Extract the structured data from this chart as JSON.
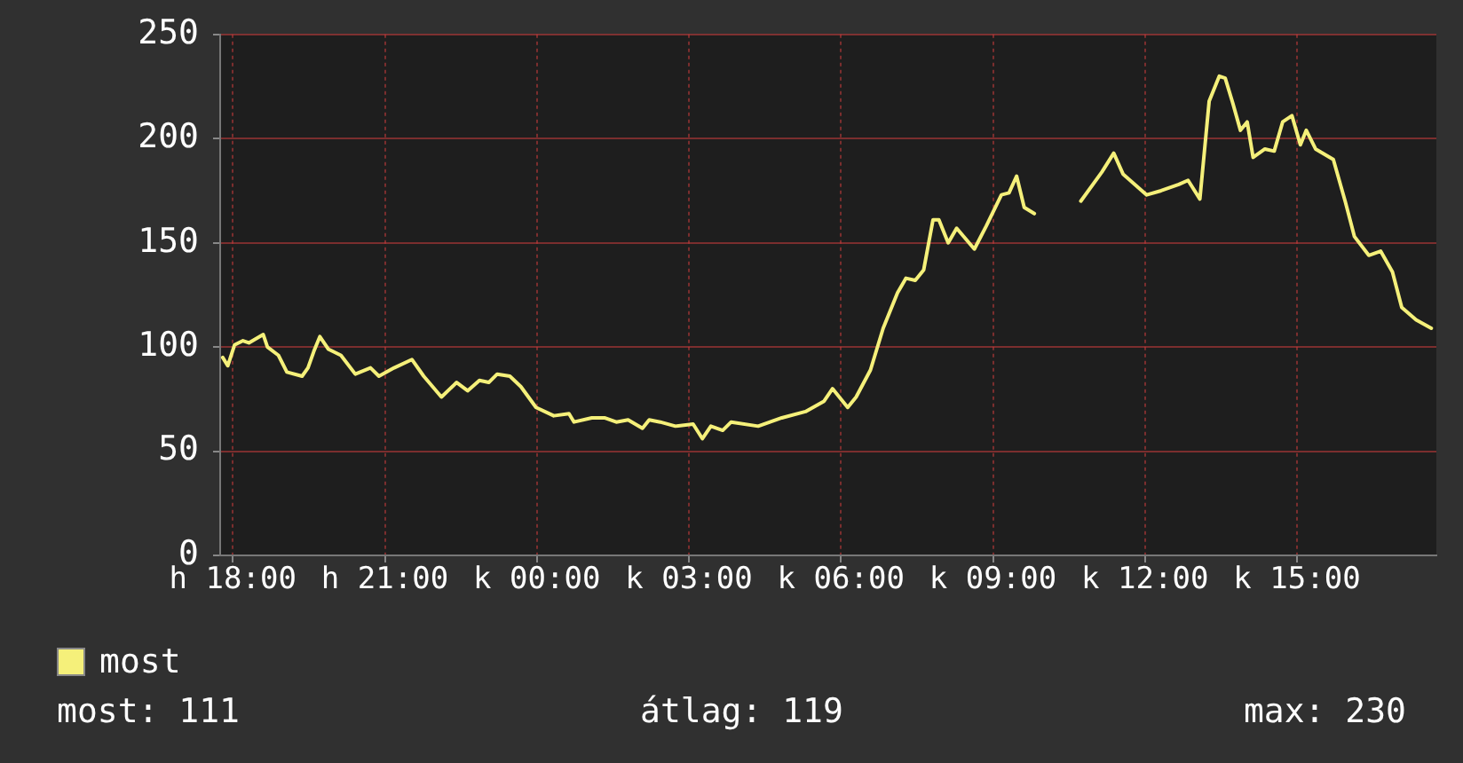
{
  "chart_data": {
    "type": "line",
    "x": [
      "--01-01T17:48",
      "--01-01T17:54",
      "--01-01T18:02",
      "--01-01T18:12",
      "--01-01T18:19",
      "--01-01T18:36",
      "--01-01T18:41",
      "--01-01T18:54",
      "--01-01T19:04",
      "--01-01T19:22",
      "--01-01T19:29",
      "--01-01T19:36",
      "--01-01T19:43",
      "--01-01T19:53",
      "--01-01T20:08",
      "--01-01T20:25",
      "--01-01T20:43",
      "--01-01T20:53",
      "--01-01T21:11",
      "--01-01T21:32",
      "--01-01T21:46",
      "--01-01T22:07",
      "--01-01T22:25",
      "--01-01T22:38",
      "--01-01T22:52",
      "--01-01T23:03",
      "--01-01T23:13",
      "--01-01T23:28",
      "--01-01T23:41",
      "--01-01T23:59",
      "--01-02T00:20",
      "--01-02T00:38",
      "--01-02T00:44",
      "--01-02T01:05",
      "--01-02T01:20",
      "--01-02T01:34",
      "--01-02T01:48",
      "--01-02T02:05",
      "--01-02T02:13",
      "--01-02T02:26",
      "--01-02T02:44",
      "--01-02T03:05",
      "--01-02T03:16",
      "--01-02T03:26",
      "--01-02T03:40",
      "--01-02T03:50",
      "--01-02T04:22",
      "--01-02T04:50",
      "--01-02T05:18",
      "--01-02T05:40",
      "--01-02T05:50",
      "--01-02T06:08",
      "--01-02T06:18",
      "--01-02T06:35",
      "--01-02T06:50",
      "--01-02T07:07",
      "--01-02T07:17",
      "--01-02T07:28",
      "--01-02T07:38",
      "--01-02T07:49",
      "--01-02T07:56",
      "--01-02T08:07",
      "--01-02T08:17",
      "--01-02T08:38",
      "--01-02T08:52",
      "--01-02T09:10",
      "--01-02T09:19",
      "--01-02T09:28",
      "--01-02T09:37",
      "--01-02T09:49",
      "--01-02T10:18",
      "--01-02T10:44",
      "--01-02T11:09",
      "--01-02T11:23",
      "--01-02T11:34",
      "--01-02T11:48",
      "--01-02T12:02",
      "--01-02T12:19",
      "--01-02T12:40",
      "--01-02T12:51",
      "--01-02T13:05",
      "--01-02T13:16",
      "--01-02T13:28",
      "--01-02T13:35",
      "--01-02T13:44",
      "--01-02T13:53",
      "--01-02T14:01",
      "--01-02T14:08",
      "--01-02T14:22",
      "--01-02T14:33",
      "--01-02T14:43",
      "--01-02T14:54",
      "--01-02T15:04",
      "--01-02T15:11",
      "--01-02T15:22",
      "--01-02T15:43",
      "--01-02T15:57",
      "--01-02T16:08",
      "--01-02T16:25",
      "--01-02T16:39",
      "--01-02T16:53",
      "--01-02T17:04",
      "--01-02T17:21",
      "--01-02T17:39"
    ],
    "series": [
      {
        "name": "most",
        "color": "#f5f07a",
        "values": [
          95,
          91,
          101,
          103,
          102,
          106,
          100,
          96,
          88,
          86,
          90,
          98,
          105,
          99,
          96,
          87,
          90,
          86,
          90,
          94,
          86,
          76,
          83,
          79,
          84,
          83,
          87,
          86,
          81,
          71,
          67,
          68,
          64,
          66,
          66,
          64,
          65,
          61,
          65,
          64,
          62,
          63,
          56,
          62,
          60,
          64,
          62,
          66,
          69,
          74,
          80,
          71,
          76,
          89,
          109,
          126,
          133,
          132,
          137,
          161,
          161,
          150,
          157,
          147,
          158,
          173,
          174,
          182,
          167,
          164,
          null,
          170,
          184,
          193,
          183,
          178,
          173,
          175,
          178,
          180,
          171,
          218,
          230,
          229,
          217,
          204,
          208,
          191,
          195,
          194,
          208,
          211,
          197,
          204,
          195,
          190,
          170,
          153,
          144,
          146,
          136,
          119,
          113,
          109
        ]
      }
    ],
    "xlim": [
      "--01-01T17:45",
      "--01-02T17:45"
    ],
    "xticks": [
      {
        "value": "--01-01T18:00",
        "label": "h 18:00"
      },
      {
        "value": "--01-01T21:00",
        "label": "h 21:00"
      },
      {
        "value": "--01-02T00:00",
        "label": "k 00:00"
      },
      {
        "value": "--01-02T03:00",
        "label": "k 03:00"
      },
      {
        "value": "--01-02T06:00",
        "label": "k 06:00"
      },
      {
        "value": "--01-02T09:00",
        "label": "k 09:00"
      },
      {
        "value": "--01-02T12:00",
        "label": "k 12:00"
      },
      {
        "value": "--01-02T15:00",
        "label": "k 15:00"
      }
    ],
    "ylim": [
      0,
      250
    ],
    "yticks": [
      0,
      50,
      100,
      150,
      200,
      250
    ],
    "grid": true,
    "legend": "bottom left",
    "marker": "none",
    "line_style": "solid",
    "annotations": [
      "most: 111",
      "átlag: 119",
      "max: 230"
    ]
  }
}
